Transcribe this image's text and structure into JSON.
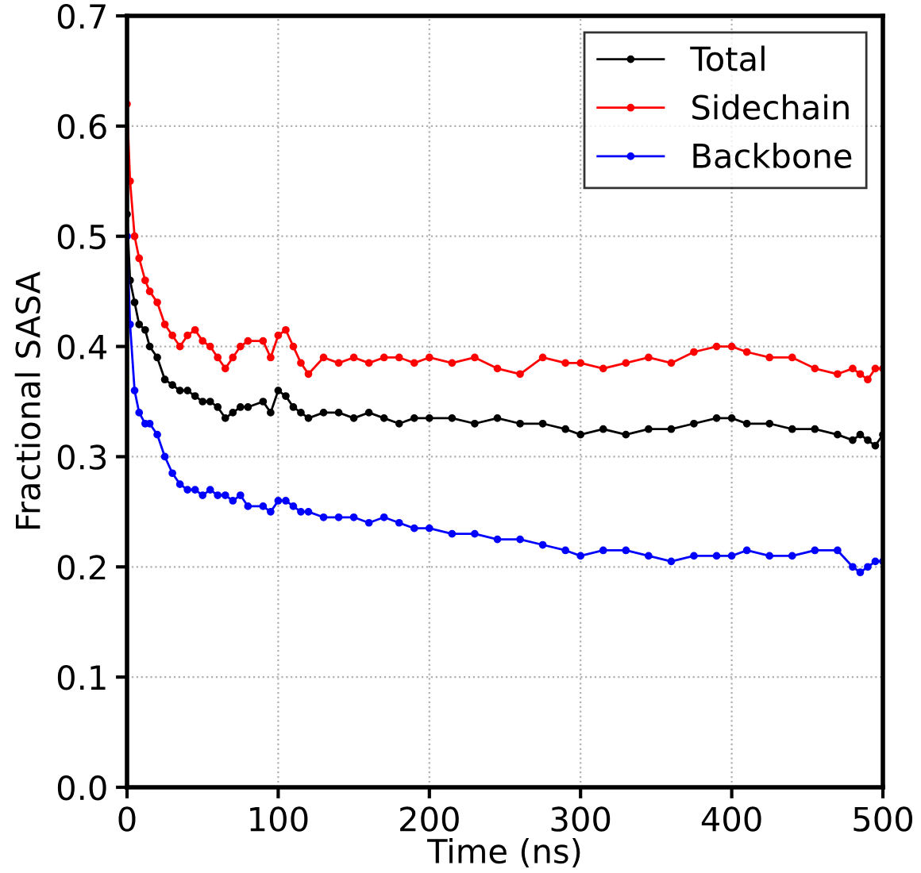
{
  "chart_data": {
    "type": "line",
    "xlabel": "Time (ns)",
    "ylabel": "Fractional SASA",
    "xlim": [
      0,
      500
    ],
    "ylim": [
      0,
      0.7
    ],
    "xticks": [
      0,
      100,
      200,
      300,
      400,
      500
    ],
    "yticks": [
      {
        "value": 0,
        "label": "0.0"
      },
      0.1,
      0.2,
      0.3,
      0.4,
      0.5,
      0.6,
      0.7
    ],
    "grid": true,
    "legend": "top right",
    "marker": "circle",
    "line_style": "solid",
    "x": [
      0,
      2,
      5,
      8,
      12,
      15,
      20,
      25,
      30,
      35,
      40,
      45,
      50,
      55,
      60,
      65,
      70,
      75,
      80,
      90,
      95,
      100,
      105,
      110,
      115,
      120,
      130,
      140,
      150,
      160,
      170,
      180,
      190,
      200,
      215,
      230,
      245,
      260,
      275,
      290,
      300,
      315,
      330,
      345,
      360,
      375,
      390,
      400,
      410,
      425,
      440,
      455,
      470,
      480,
      485,
      490,
      495,
      500
    ],
    "series": [
      {
        "name": "Total",
        "color": "#000000",
        "values": [
          0.52,
          0.46,
          0.44,
          0.42,
          0.415,
          0.4,
          0.39,
          0.37,
          0.365,
          0.36,
          0.36,
          0.355,
          0.35,
          0.35,
          0.345,
          0.335,
          0.34,
          0.345,
          0.345,
          0.35,
          0.34,
          0.36,
          0.355,
          0.345,
          0.34,
          0.335,
          0.34,
          0.34,
          0.335,
          0.34,
          0.335,
          0.33,
          0.335,
          0.335,
          0.335,
          0.33,
          0.335,
          0.33,
          0.33,
          0.325,
          0.32,
          0.325,
          0.32,
          0.325,
          0.325,
          0.33,
          0.335,
          0.335,
          0.33,
          0.33,
          0.325,
          0.325,
          0.32,
          0.315,
          0.32,
          0.315,
          0.31,
          0.32
        ]
      },
      {
        "name": "Sidechain",
        "color": "#ff0000",
        "values": [
          0.62,
          0.55,
          0.5,
          0.48,
          0.46,
          0.45,
          0.44,
          0.42,
          0.41,
          0.4,
          0.41,
          0.415,
          0.405,
          0.4,
          0.39,
          0.38,
          0.39,
          0.4,
          0.405,
          0.405,
          0.39,
          0.41,
          0.415,
          0.4,
          0.385,
          0.375,
          0.39,
          0.385,
          0.39,
          0.385,
          0.39,
          0.39,
          0.385,
          0.39,
          0.385,
          0.39,
          0.38,
          0.375,
          0.39,
          0.385,
          0.385,
          0.38,
          0.385,
          0.39,
          0.385,
          0.395,
          0.4,
          0.4,
          0.395,
          0.39,
          0.39,
          0.38,
          0.375,
          0.38,
          0.375,
          0.37,
          0.38,
          0.38
        ]
      },
      {
        "name": "Backbone",
        "color": "#0000ff",
        "values": [
          0.5,
          0.42,
          0.36,
          0.34,
          0.33,
          0.33,
          0.32,
          0.3,
          0.285,
          0.275,
          0.27,
          0.27,
          0.265,
          0.27,
          0.265,
          0.265,
          0.26,
          0.265,
          0.255,
          0.255,
          0.25,
          0.26,
          0.26,
          0.255,
          0.25,
          0.25,
          0.245,
          0.245,
          0.245,
          0.24,
          0.245,
          0.24,
          0.235,
          0.235,
          0.23,
          0.23,
          0.225,
          0.225,
          0.22,
          0.215,
          0.21,
          0.215,
          0.215,
          0.21,
          0.205,
          0.21,
          0.21,
          0.21,
          0.215,
          0.21,
          0.21,
          0.215,
          0.215,
          0.2,
          0.195,
          0.2,
          0.205,
          0.205
        ]
      }
    ]
  }
}
